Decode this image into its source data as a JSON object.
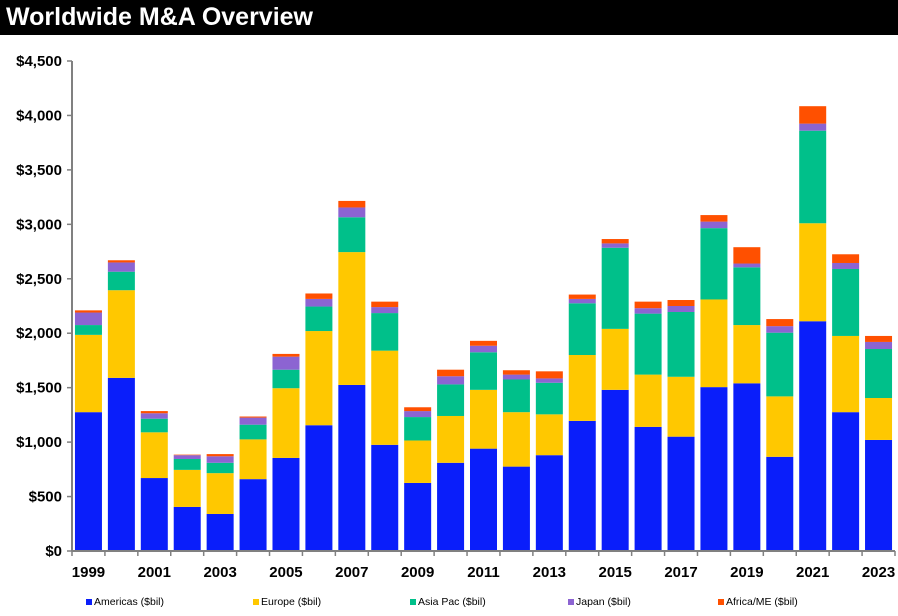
{
  "chart_data": {
    "type": "bar",
    "stacked": true,
    "title": "Worldwide M&A Overview",
    "xlabel": "",
    "ylabel": "",
    "ylim": [
      0,
      4500
    ],
    "ytick_step": 500,
    "ytick_labels": [
      "$0",
      "$500",
      "$1,000",
      "$1,500",
      "$2,000",
      "$2,500",
      "$3,000",
      "$3,500",
      "$4,000",
      "$4,500"
    ],
    "grid": false,
    "legend_position": "bottom",
    "categories": [
      "1999",
      "2000",
      "2001",
      "2002",
      "2003",
      "2004",
      "2005",
      "2006",
      "2007",
      "2008",
      "2009",
      "2010",
      "2011",
      "2012",
      "2013",
      "2014",
      "2015",
      "2016",
      "2017",
      "2018",
      "2019",
      "2020",
      "2021",
      "2022",
      "2023"
    ],
    "xtick_labels": [
      "1999",
      "2001",
      "2003",
      "2005",
      "2007",
      "2009",
      "2011",
      "2013",
      "2015",
      "2017",
      "2019",
      "2021",
      "2023"
    ],
    "series": [
      {
        "name": "Americas ($bil)",
        "color": "#0A1EFA",
        "values": [
          1275,
          1590,
          670,
          405,
          340,
          660,
          855,
          1155,
          1525,
          975,
          625,
          810,
          940,
          775,
          880,
          1195,
          1480,
          1140,
          1050,
          1505,
          1540,
          865,
          2110,
          1275,
          1020
        ]
      },
      {
        "name": "Europe ($bil)",
        "color": "#FFC800",
        "values": [
          710,
          805,
          420,
          340,
          375,
          365,
          640,
          865,
          1220,
          865,
          390,
          430,
          540,
          500,
          375,
          605,
          560,
          480,
          550,
          805,
          535,
          555,
          900,
          700,
          385
        ]
      },
      {
        "name": "Asia Pac ($bil)",
        "color": "#00C08A",
        "values": [
          90,
          170,
          125,
          100,
          95,
          135,
          170,
          225,
          320,
          345,
          215,
          290,
          345,
          300,
          290,
          475,
          745,
          560,
          595,
          655,
          530,
          585,
          850,
          615,
          450
        ]
      },
      {
        "name": "Japan ($bil)",
        "color": "#8C64D2",
        "values": [
          115,
          85,
          50,
          35,
          60,
          65,
          120,
          70,
          90,
          55,
          55,
          75,
          60,
          45,
          40,
          40,
          40,
          50,
          55,
          60,
          35,
          60,
          65,
          55,
          65
        ]
      },
      {
        "name": "Africa/ME ($bil)",
        "color": "#FF5000",
        "values": [
          20,
          20,
          20,
          5,
          20,
          10,
          25,
          50,
          60,
          50,
          35,
          60,
          45,
          40,
          65,
          40,
          40,
          60,
          55,
          60,
          150,
          65,
          160,
          80,
          55
        ]
      }
    ]
  }
}
